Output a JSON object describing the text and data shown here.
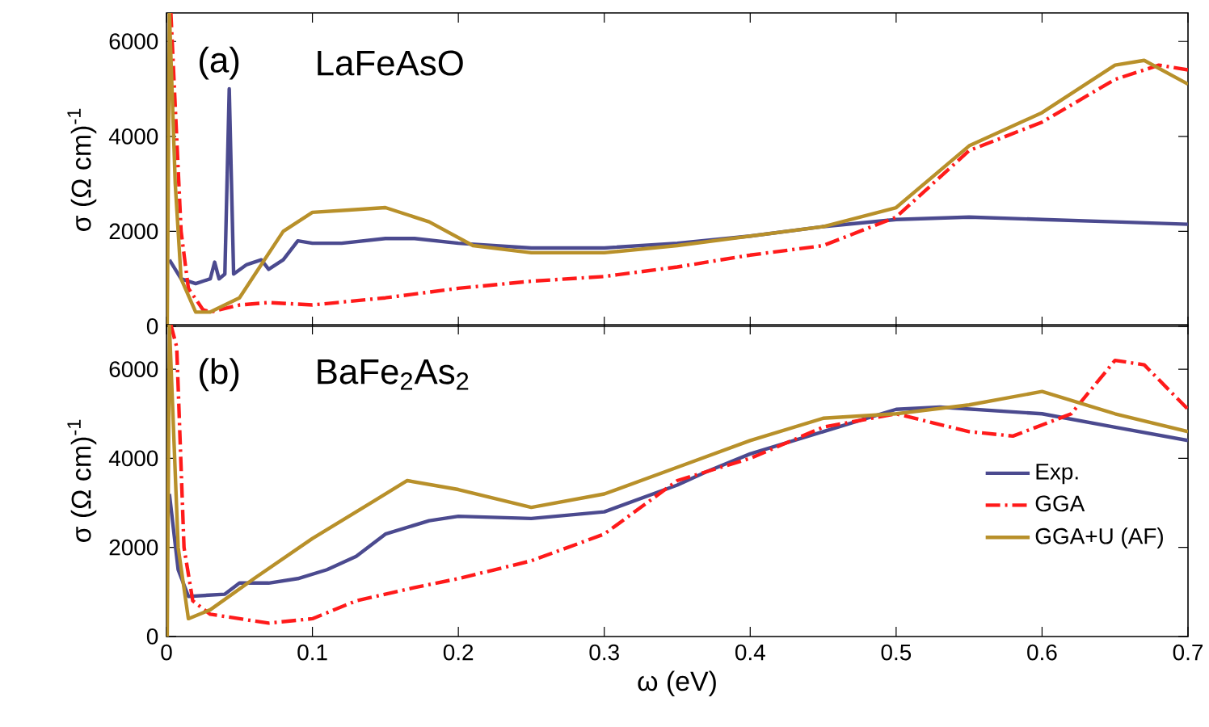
{
  "chart_data": [
    {
      "type": "line",
      "annotations": [
        "(a)",
        "LaFeAsO"
      ],
      "ylabel": "σ  (Ω cm)$^{-1}$",
      "xlim": [
        0,
        0.7
      ],
      "ylim": [
        0,
        6600
      ],
      "xticks": [
        0,
        0.1,
        0.2,
        0.3,
        0.4,
        0.5,
        0.6,
        0.7
      ],
      "yticks": [
        0,
        2000,
        4000,
        6000
      ],
      "tick_labels": "y",
      "grid": false,
      "legend": false,
      "marker": "none",
      "series": [
        {
          "color": "#4b4a8f",
          "line_style": "solid",
          "x": [
            0.002,
            0.01,
            0.02,
            0.03,
            0.033,
            0.036,
            0.04,
            0.043,
            0.046,
            0.055,
            0.065,
            0.07,
            0.08,
            0.09,
            0.1,
            0.12,
            0.15,
            0.17,
            0.2,
            0.25,
            0.3,
            0.35,
            0.4,
            0.45,
            0.5,
            0.55,
            0.6,
            0.65,
            0.7
          ],
          "values": [
            1400,
            1000,
            900,
            1000,
            1350,
            1000,
            1100,
            5000,
            1100,
            1300,
            1400,
            1200,
            1400,
            1800,
            1750,
            1750,
            1850,
            1850,
            1750,
            1650,
            1650,
            1750,
            1900,
            2100,
            2250,
            2300,
            2250,
            2200,
            2150
          ]
        },
        {
          "color": "#ff1a1a",
          "line_style": "dashed",
          "x": [
            0.003,
            0.01,
            0.015,
            0.025,
            0.03,
            0.05,
            0.07,
            0.1,
            0.15,
            0.2,
            0.25,
            0.3,
            0.35,
            0.4,
            0.45,
            0.5,
            0.55,
            0.6,
            0.65,
            0.68,
            0.7
          ],
          "values": [
            6600,
            2000,
            800,
            350,
            300,
            450,
            500,
            450,
            600,
            800,
            950,
            1050,
            1250,
            1500,
            1700,
            2300,
            3700,
            4300,
            5200,
            5500,
            5400
          ]
        },
        {
          "color": "#b8902a",
          "line_style": "solid",
          "x": [
            0.0005,
            0.002,
            0.006,
            0.01,
            0.02,
            0.03,
            0.05,
            0.065,
            0.08,
            0.1,
            0.125,
            0.15,
            0.18,
            0.21,
            0.25,
            0.3,
            0.35,
            0.4,
            0.45,
            0.5,
            0.55,
            0.6,
            0.65,
            0.67,
            0.7
          ],
          "values": [
            0,
            6600,
            3000,
            1000,
            300,
            300,
            600,
            1300,
            2000,
            2400,
            2450,
            2500,
            2200,
            1700,
            1550,
            1550,
            1700,
            1900,
            2100,
            2500,
            3800,
            4500,
            5500,
            5600,
            5100
          ]
        }
      ]
    },
    {
      "type": "line",
      "annotations": [
        "(b)",
        "BaFe$_{2}$As$_{2}$"
      ],
      "xlabel": "ω (eV)",
      "ylabel": "σ  (Ω cm)$^{-1}$",
      "xlim": [
        0,
        0.7
      ],
      "ylim": [
        0,
        7000
      ],
      "xticks": [
        0,
        0.1,
        0.2,
        0.3,
        0.4,
        0.5,
        0.6,
        0.7
      ],
      "yticks": [
        0,
        2000,
        4000,
        6000
      ],
      "grid": false,
      "legend": "right",
      "marker": "none",
      "series": [
        {
          "name": "Exp.",
          "color": "#4b4a8f",
          "line_style": "solid",
          "x": [
            0.002,
            0.008,
            0.015,
            0.04,
            0.05,
            0.07,
            0.09,
            0.11,
            0.13,
            0.15,
            0.18,
            0.2,
            0.25,
            0.3,
            0.35,
            0.37,
            0.4,
            0.45,
            0.5,
            0.53,
            0.6,
            0.65,
            0.7
          ],
          "values": [
            3200,
            1500,
            900,
            950,
            1200,
            1200,
            1300,
            1500,
            1800,
            2300,
            2600,
            2700,
            2650,
            2800,
            3400,
            3700,
            4100,
            4600,
            5100,
            5150,
            5000,
            4700,
            4400
          ]
        },
        {
          "name": "GGA",
          "color": "#ff1a1a",
          "line_style": "dashed",
          "x": [
            0.003,
            0.007,
            0.012,
            0.018,
            0.03,
            0.07,
            0.1,
            0.13,
            0.17,
            0.2,
            0.25,
            0.3,
            0.35,
            0.4,
            0.45,
            0.5,
            0.55,
            0.58,
            0.62,
            0.65,
            0.67,
            0.7
          ],
          "values": [
            7000,
            6500,
            2000,
            800,
            500,
            300,
            400,
            800,
            1100,
            1300,
            1700,
            2300,
            3500,
            4000,
            4700,
            5000,
            4600,
            4500,
            5000,
            6200,
            6100,
            5100
          ]
        },
        {
          "name": "GGA+U (AF)",
          "color": "#b8902a",
          "line_style": "solid",
          "x": [
            0.0005,
            0.002,
            0.008,
            0.015,
            0.03,
            0.06,
            0.1,
            0.14,
            0.165,
            0.2,
            0.25,
            0.3,
            0.35,
            0.4,
            0.45,
            0.5,
            0.55,
            0.6,
            0.65,
            0.7
          ],
          "values": [
            0,
            7000,
            2000,
            400,
            600,
            1300,
            2200,
            3000,
            3500,
            3300,
            2900,
            3200,
            3800,
            4400,
            4900,
            5000,
            5200,
            5500,
            5000,
            4600
          ]
        }
      ]
    }
  ]
}
